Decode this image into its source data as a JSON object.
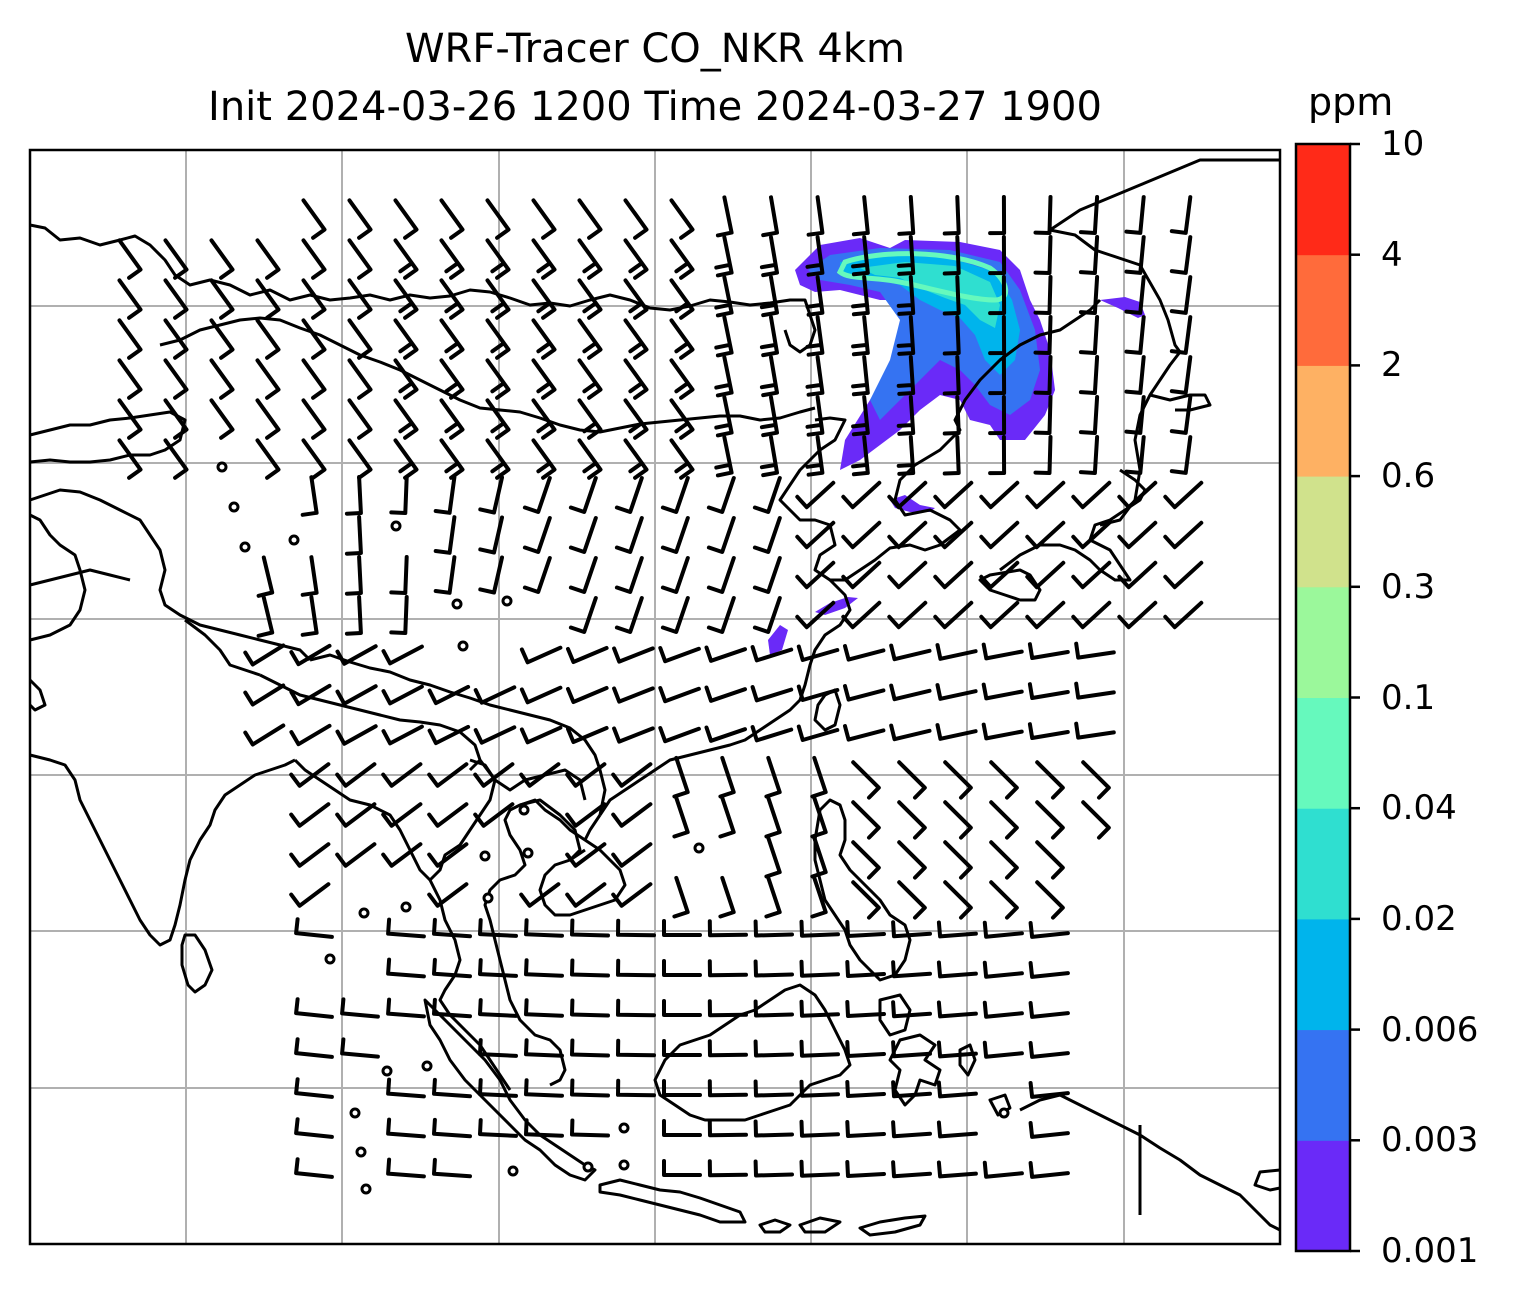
{
  "title": {
    "line1": "WRF-Tracer CO_NKR 4km",
    "line2": "Init 2024-03-26 1200 Time 2024-03-27 1900"
  },
  "colorbar": {
    "unit": "ppm",
    "levels": [
      "0.001",
      "0.003",
      "0.006",
      "0.02",
      "0.04",
      "0.1",
      "0.3",
      "0.6",
      "2",
      "4",
      "10"
    ],
    "colors": [
      "#6a2af8",
      "#3573f2",
      "#00b4ec",
      "#2fdfd0",
      "#66f9bd",
      "#9bf89b",
      "#d0e28c",
      "#feb163",
      "#ff6b3b",
      "#ff2a18"
    ]
  },
  "map": {
    "land_outline_color": "#000000",
    "gridline_color": "#b0b0b0",
    "plume_colors": [
      "#6a2af8",
      "#3573f2",
      "#00b4ec",
      "#2fdfd0",
      "#66f9bd"
    ]
  }
}
